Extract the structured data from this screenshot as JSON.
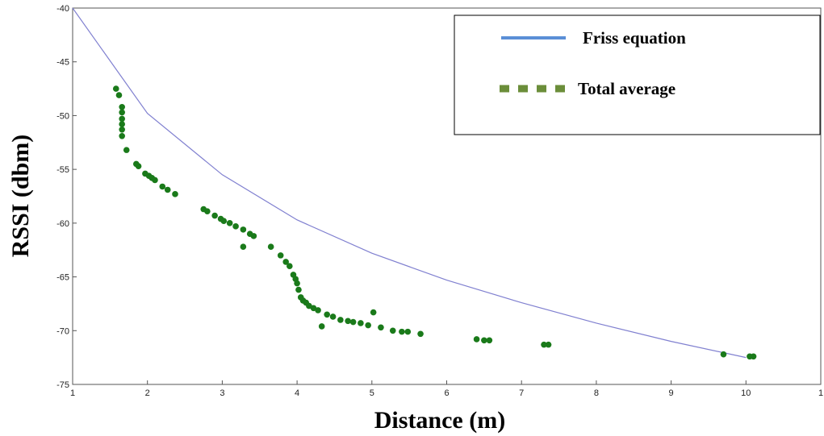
{
  "chart_data": {
    "type": "scatter",
    "xlabel": "Distance (m)",
    "ylabel": "RSSI (dbm)",
    "xlim": [
      1,
      11
    ],
    "ylim": [
      -75,
      -40
    ],
    "xticks": [
      "1",
      "2",
      "3",
      "4",
      "5",
      "6",
      "7",
      "8",
      "9",
      "10",
      "1"
    ],
    "yticks": [
      "-40",
      "-45",
      "-50",
      "-55",
      "-60",
      "-65",
      "-70",
      "-75"
    ],
    "grid": false,
    "legend_position": "top-right",
    "series": [
      {
        "name": "Friss equation",
        "kind": "line",
        "color": "#8080d0",
        "legend_color": "#5b8fd6",
        "points": [
          [
            1,
            -40
          ],
          [
            2,
            -49.8
          ],
          [
            3,
            -55.5
          ],
          [
            4,
            -59.7
          ],
          [
            5,
            -62.8
          ],
          [
            6,
            -65.3
          ],
          [
            7,
            -67.4
          ],
          [
            8,
            -69.3
          ],
          [
            9,
            -71.0
          ],
          [
            10,
            -72.5
          ]
        ]
      },
      {
        "name": "Total average",
        "kind": "scatter",
        "color": "#1a7a1a",
        "legend_color": "#6b8e3a",
        "points": [
          [
            1.58,
            -47.5
          ],
          [
            1.62,
            -48.1
          ],
          [
            1.66,
            -49.2
          ],
          [
            1.66,
            -49.7
          ],
          [
            1.66,
            -50.3
          ],
          [
            1.66,
            -50.8
          ],
          [
            1.66,
            -51.3
          ],
          [
            1.66,
            -51.9
          ],
          [
            1.72,
            -53.2
          ],
          [
            1.85,
            -54.5
          ],
          [
            1.88,
            -54.7
          ],
          [
            1.97,
            -55.4
          ],
          [
            2.02,
            -55.6
          ],
          [
            2.06,
            -55.8
          ],
          [
            2.1,
            -56.0
          ],
          [
            2.2,
            -56.6
          ],
          [
            2.27,
            -56.9
          ],
          [
            2.37,
            -57.3
          ],
          [
            2.75,
            -58.7
          ],
          [
            2.8,
            -58.9
          ],
          [
            2.9,
            -59.3
          ],
          [
            2.98,
            -59.6
          ],
          [
            3.02,
            -59.8
          ],
          [
            3.1,
            -60.0
          ],
          [
            3.18,
            -60.3
          ],
          [
            3.28,
            -60.6
          ],
          [
            3.37,
            -61.0
          ],
          [
            3.42,
            -61.2
          ],
          [
            3.28,
            -62.2
          ],
          [
            3.65,
            -62.2
          ],
          [
            3.78,
            -63.0
          ],
          [
            3.85,
            -63.6
          ],
          [
            3.9,
            -64.0
          ],
          [
            3.95,
            -64.8
          ],
          [
            3.98,
            -65.2
          ],
          [
            4.0,
            -65.6
          ],
          [
            4.02,
            -66.2
          ],
          [
            4.05,
            -66.9
          ],
          [
            4.08,
            -67.2
          ],
          [
            4.12,
            -67.4
          ],
          [
            4.16,
            -67.7
          ],
          [
            4.22,
            -67.9
          ],
          [
            4.28,
            -68.1
          ],
          [
            4.4,
            -68.5
          ],
          [
            4.48,
            -68.7
          ],
          [
            4.58,
            -69.0
          ],
          [
            4.68,
            -69.1
          ],
          [
            4.75,
            -69.2
          ],
          [
            4.85,
            -69.3
          ],
          [
            4.95,
            -69.5
          ],
          [
            5.02,
            -68.3
          ],
          [
            4.33,
            -69.6
          ],
          [
            5.12,
            -69.7
          ],
          [
            5.28,
            -70.0
          ],
          [
            5.4,
            -70.1
          ],
          [
            5.48,
            -70.1
          ],
          [
            5.65,
            -70.3
          ],
          [
            6.4,
            -70.8
          ],
          [
            6.5,
            -70.9
          ],
          [
            6.57,
            -70.9
          ],
          [
            7.3,
            -71.3
          ],
          [
            7.36,
            -71.3
          ],
          [
            9.7,
            -72.2
          ],
          [
            10.05,
            -72.4
          ],
          [
            10.1,
            -72.4
          ]
        ]
      }
    ]
  }
}
